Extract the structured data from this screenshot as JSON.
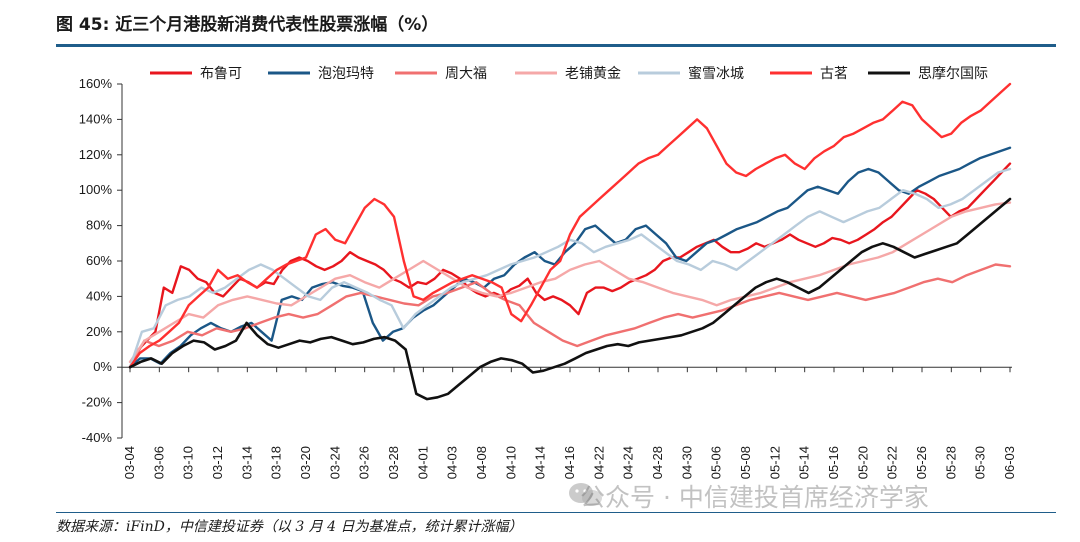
{
  "figure_title": "图 45: 近三个月港股新消费代表性股票涨幅（%）",
  "source_note": "数据来源：iFinD，中信建投证券（以 3 月 4 日为基准点，统计累计涨幅）",
  "watermark": "公众号 · 中信建投首席经济学家",
  "chart_data": {
    "type": "line",
    "title": "",
    "xlabel": "",
    "ylabel": "",
    "ylim": [
      -40,
      160
    ],
    "y_ticks": [
      "-40%",
      "-20%",
      "0%",
      "20%",
      "40%",
      "60%",
      "80%",
      "100%",
      "120%",
      "140%",
      "160%"
    ],
    "x_tick_labels": [
      "03-04",
      "03-06",
      "03-10",
      "03-12",
      "03-14",
      "03-18",
      "03-20",
      "03-24",
      "03-26",
      "03-28",
      "04-01",
      "04-03",
      "04-08",
      "04-10",
      "04-14",
      "04-16",
      "04-22",
      "04-24",
      "04-28",
      "04-30",
      "05-06",
      "05-08",
      "05-12",
      "05-14",
      "05-16",
      "05-20",
      "05-22",
      "05-26",
      "05-28",
      "05-30",
      "06-03"
    ],
    "legend_position": "top",
    "grid": false,
    "series": [
      {
        "name": "布鲁可",
        "color": "#e8161e",
        "values": [
          0,
          10,
          15,
          20,
          45,
          42,
          57,
          55,
          50,
          48,
          42,
          40,
          45,
          50,
          48,
          45,
          48,
          47,
          55,
          60,
          62,
          60,
          57,
          55,
          57,
          60,
          65,
          62,
          60,
          58,
          55,
          50,
          48,
          45,
          48,
          47,
          50,
          55,
          53,
          50,
          45,
          42,
          40,
          42,
          40,
          44,
          46,
          50,
          42,
          38,
          40,
          38,
          35,
          30,
          42,
          45,
          45,
          43,
          45,
          48,
          50,
          52,
          55,
          60,
          62,
          62,
          65,
          68,
          70,
          72,
          68,
          65,
          65,
          67,
          70,
          68,
          70,
          72,
          75,
          72,
          70,
          68,
          70,
          73,
          72,
          70,
          72,
          75,
          78,
          82,
          85,
          90,
          95,
          100,
          98,
          95,
          90,
          85,
          88,
          90,
          95,
          100,
          105,
          110,
          115
        ]
      },
      {
        "name": "泡泡玛特",
        "color": "#1b5787",
        "values": [
          0,
          5,
          5,
          2,
          8,
          12,
          18,
          22,
          25,
          22,
          20,
          23,
          25,
          20,
          15,
          38,
          40,
          38,
          45,
          47,
          48,
          46,
          45,
          43,
          25,
          15,
          20,
          22,
          28,
          32,
          35,
          40,
          45,
          50,
          48,
          45,
          50,
          52,
          58,
          62,
          65,
          60,
          58,
          65,
          70,
          78,
          80,
          75,
          70,
          72,
          78,
          80,
          75,
          70,
          62,
          60,
          65,
          70,
          72,
          75,
          78,
          80,
          82,
          85,
          88,
          90,
          95,
          100,
          102,
          100,
          98,
          105,
          110,
          112,
          110,
          105,
          100,
          98,
          102,
          105,
          108,
          110,
          112,
          115,
          118,
          120,
          122,
          124
        ]
      },
      {
        "name": "周大福",
        "color": "#f07070",
        "values": [
          0,
          15,
          12,
          15,
          20,
          18,
          22,
          20,
          22,
          25,
          28,
          30,
          28,
          30,
          35,
          40,
          42,
          40,
          38,
          36,
          35,
          40,
          42,
          45,
          48,
          42,
          38,
          35,
          25,
          20,
          15,
          12,
          15,
          18,
          20,
          22,
          25,
          28,
          30,
          28,
          30,
          32,
          35,
          38,
          40,
          42,
          40,
          38,
          40,
          42,
          40,
          38,
          40,
          42,
          45,
          48,
          50,
          48,
          52,
          55,
          58,
          57
        ]
      },
      {
        "name": "老铺黄金",
        "color": "#f5a8a8",
        "values": [
          3,
          15,
          20,
          25,
          30,
          28,
          35,
          38,
          40,
          38,
          36,
          35,
          40,
          45,
          50,
          52,
          48,
          45,
          50,
          55,
          60,
          55,
          50,
          45,
          42,
          40,
          42,
          45,
          48,
          50,
          55,
          58,
          60,
          55,
          50,
          48,
          45,
          42,
          40,
          38,
          35,
          38,
          40,
          42,
          45,
          48,
          50,
          52,
          55,
          58,
          60,
          62,
          65,
          70,
          75,
          80,
          85,
          88,
          90,
          92,
          93
        ]
      },
      {
        "name": "蜜雪冰城",
        "color": "#b8ccdc",
        "values": [
          0,
          20,
          22,
          35,
          38,
          40,
          45,
          42,
          45,
          50,
          55,
          58,
          55,
          50,
          45,
          40,
          38,
          45,
          48,
          45,
          42,
          38,
          35,
          22,
          30,
          35,
          40,
          45,
          48,
          50,
          52,
          55,
          58,
          60,
          62,
          65,
          68,
          72,
          70,
          65,
          68,
          70,
          72,
          75,
          70,
          65,
          60,
          58,
          55,
          60,
          58,
          55,
          60,
          65,
          70,
          75,
          80,
          85,
          88,
          85,
          82,
          85,
          88,
          90,
          95,
          100,
          98,
          95,
          90,
          92,
          95,
          100,
          105,
          110,
          112
        ]
      },
      {
        "name": "古茗",
        "color": "#ff3030",
        "values": [
          0,
          8,
          12,
          15,
          20,
          25,
          35,
          40,
          45,
          55,
          50,
          52,
          48,
          45,
          50,
          55,
          58,
          60,
          62,
          75,
          78,
          72,
          70,
          80,
          90,
          95,
          92,
          85,
          60,
          40,
          38,
          42,
          45,
          48,
          50,
          52,
          50,
          48,
          45,
          30,
          26,
          35,
          45,
          55,
          60,
          75,
          85,
          90,
          95,
          100,
          105,
          110,
          115,
          118,
          120,
          125,
          130,
          135,
          140,
          135,
          125,
          115,
          110,
          108,
          112,
          115,
          118,
          120,
          115,
          112,
          118,
          122,
          125,
          130,
          132,
          135,
          138,
          140,
          145,
          150,
          148,
          140,
          135,
          130,
          132,
          138,
          142,
          145,
          150,
          155,
          160
        ]
      },
      {
        "name": "思摩尔国际",
        "color": "#111111",
        "values": [
          0,
          3,
          5,
          2,
          8,
          12,
          15,
          14,
          10,
          12,
          15,
          25,
          18,
          13,
          11,
          13,
          15,
          14,
          16,
          17,
          15,
          13,
          14,
          16,
          17,
          15,
          10,
          -15,
          -18,
          -17,
          -15,
          -10,
          -5,
          0,
          3,
          5,
          4,
          2,
          -3,
          -2,
          0,
          2,
          5,
          8,
          10,
          12,
          13,
          12,
          14,
          15,
          16,
          17,
          18,
          20,
          22,
          25,
          30,
          35,
          40,
          45,
          48,
          50,
          48,
          45,
          42,
          45,
          50,
          55,
          60,
          65,
          68,
          70,
          68,
          65,
          62,
          64,
          66,
          68,
          70,
          75,
          80,
          85,
          90,
          95
        ]
      }
    ]
  }
}
